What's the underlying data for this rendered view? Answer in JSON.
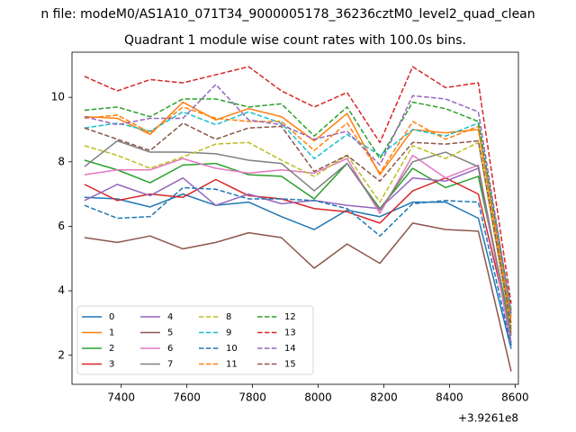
{
  "chart_data": {
    "type": "line",
    "suptitle": "n file: modeM0/AS1A10_071T34_9000005178_36236cztM0_level2_quad_clean",
    "title": "Quadrant 1 module wise count rates with 100.0s bins.",
    "xlabel": "",
    "ylabel": "",
    "x_offset_label": "+3.9261e8",
    "x": [
      7288,
      7388,
      7488,
      7588,
      7688,
      7788,
      7888,
      7988,
      8088,
      8188,
      8288,
      8388,
      8488,
      8588
    ],
    "xlim": [
      7250,
      8610
    ],
    "ylim": [
      1.1,
      11.4
    ],
    "x_ticks": [
      7400,
      7600,
      7800,
      8000,
      8200,
      8400,
      8600
    ],
    "y_ticks": [
      2,
      4,
      6,
      8,
      10
    ],
    "grid": false,
    "legend_position": "lower-left",
    "series": [
      {
        "name": "0",
        "color": "#1f77b4",
        "dash": "solid",
        "values": [
          6.9,
          6.85,
          6.6,
          7.0,
          6.65,
          6.75,
          6.3,
          5.9,
          6.5,
          6.3,
          6.75,
          6.75,
          6.25,
          2.2
        ]
      },
      {
        "name": "1",
        "color": "#ff7f0e",
        "dash": "solid",
        "values": [
          9.4,
          9.35,
          8.85,
          9.85,
          9.3,
          9.65,
          9.4,
          8.65,
          9.5,
          7.6,
          9.0,
          8.9,
          9.0,
          3.0
        ]
      },
      {
        "name": "2",
        "color": "#2ca02c",
        "dash": "solid",
        "values": [
          8.05,
          7.75,
          7.35,
          7.9,
          7.95,
          7.6,
          7.55,
          6.85,
          7.95,
          6.55,
          7.8,
          7.2,
          7.55,
          2.8
        ]
      },
      {
        "name": "3",
        "color": "#d62728",
        "dash": "solid",
        "values": [
          7.3,
          6.8,
          7.0,
          6.9,
          7.45,
          6.95,
          6.85,
          6.55,
          6.45,
          6.1,
          7.1,
          7.5,
          7.0,
          2.7
        ]
      },
      {
        "name": "4",
        "color": "#9467bd",
        "dash": "solid",
        "values": [
          6.8,
          7.3,
          6.95,
          7.5,
          6.65,
          7.0,
          6.7,
          6.8,
          6.65,
          6.55,
          7.5,
          7.4,
          7.8,
          2.4
        ]
      },
      {
        "name": "5",
        "color": "#8c564b",
        "dash": "solid",
        "values": [
          5.65,
          5.5,
          5.7,
          5.3,
          5.5,
          5.8,
          5.65,
          4.7,
          5.45,
          4.85,
          6.1,
          5.9,
          5.85,
          1.5
        ]
      },
      {
        "name": "6",
        "color": "#e377c2",
        "dash": "solid",
        "values": [
          7.6,
          7.75,
          7.75,
          8.1,
          7.8,
          7.65,
          7.75,
          7.65,
          8.1,
          6.4,
          8.2,
          7.5,
          7.9,
          2.3
        ]
      },
      {
        "name": "7",
        "color": "#7f7f7f",
        "dash": "solid",
        "values": [
          7.85,
          8.65,
          8.3,
          8.3,
          8.25,
          8.05,
          7.95,
          7.1,
          7.95,
          6.5,
          8.0,
          8.3,
          7.85,
          2.6
        ]
      },
      {
        "name": "8",
        "color": "#bcbd22",
        "dash": "dashed",
        "values": [
          8.5,
          8.2,
          7.8,
          8.15,
          8.55,
          8.6,
          8.05,
          7.55,
          8.2,
          6.75,
          8.5,
          8.1,
          8.6,
          2.8
        ]
      },
      {
        "name": "9",
        "color": "#17becf",
        "dash": "dashed",
        "values": [
          9.05,
          9.2,
          8.95,
          9.55,
          9.15,
          9.55,
          9.2,
          8.1,
          8.85,
          8.2,
          9.0,
          8.8,
          9.2,
          3.2
        ]
      },
      {
        "name": "10",
        "color": "#1f77b4",
        "dash": "dashed",
        "values": [
          6.65,
          6.25,
          6.3,
          7.2,
          7.15,
          6.85,
          6.85,
          6.8,
          6.55,
          5.7,
          6.7,
          6.8,
          6.75,
          2.3
        ]
      },
      {
        "name": "11",
        "color": "#ff7f0e",
        "dash": "dashed",
        "values": [
          9.35,
          9.45,
          8.9,
          9.7,
          9.35,
          9.25,
          9.25,
          8.35,
          9.2,
          7.65,
          9.25,
          8.7,
          9.1,
          3.1
        ]
      },
      {
        "name": "12",
        "color": "#2ca02c",
        "dash": "dashed",
        "values": [
          9.6,
          9.7,
          9.4,
          9.95,
          9.95,
          9.7,
          9.8,
          8.8,
          9.7,
          8.1,
          9.85,
          9.65,
          9.25,
          3.4
        ]
      },
      {
        "name": "13",
        "color": "#d62728",
        "dash": "dashed",
        "values": [
          10.65,
          10.2,
          10.55,
          10.45,
          10.7,
          10.95,
          10.2,
          9.7,
          10.15,
          8.6,
          10.95,
          10.3,
          10.45,
          3.6
        ]
      },
      {
        "name": "14",
        "color": "#9467bd",
        "dash": "dashed",
        "values": [
          9.4,
          9.15,
          9.35,
          9.35,
          10.4,
          9.3,
          9.15,
          8.7,
          8.95,
          7.9,
          10.05,
          9.95,
          9.55,
          3.3
        ]
      },
      {
        "name": "15",
        "color": "#8c564b",
        "dash": "dashed",
        "values": [
          9.05,
          8.7,
          8.35,
          9.2,
          8.7,
          9.05,
          9.1,
          7.7,
          8.2,
          7.4,
          8.6,
          8.55,
          8.65,
          2.9
        ]
      }
    ]
  }
}
